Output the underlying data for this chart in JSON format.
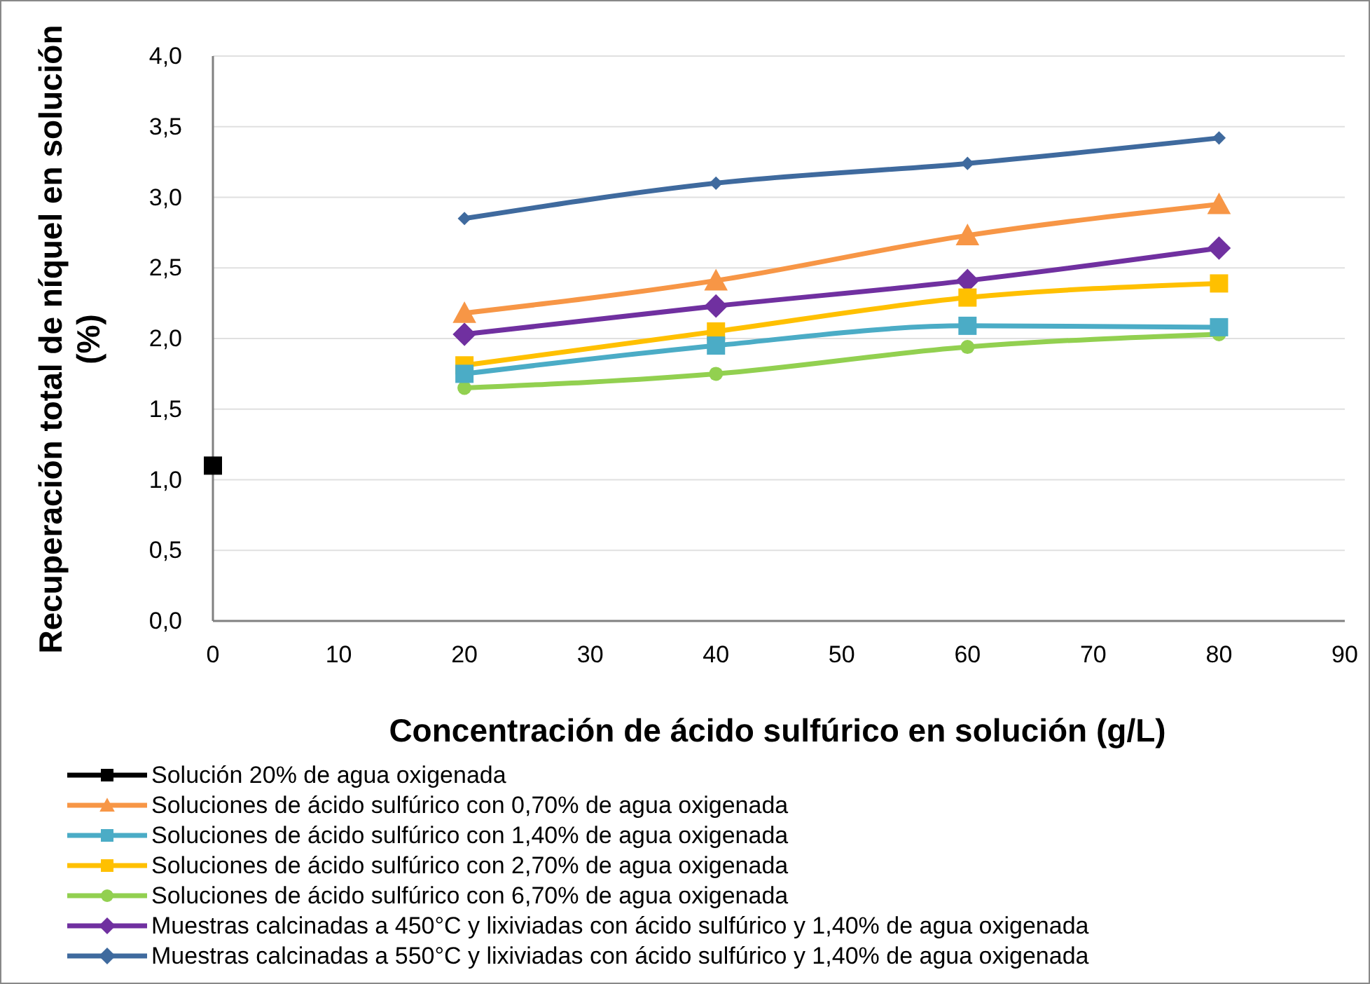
{
  "chart_data": {
    "type": "line",
    "xlabel": "Concentración de ácido sulfúrico en solución (g/L)",
    "ylabel": "Recuperación total de níquel en solución (%)",
    "xlim": [
      0,
      90
    ],
    "xticks": [
      0,
      10,
      20,
      30,
      40,
      50,
      60,
      70,
      80,
      90
    ],
    "ylim": [
      0,
      4
    ],
    "yticks": [
      {
        "value": 0,
        "label": "0,0"
      },
      {
        "value": 0.5,
        "label": "0,5"
      },
      {
        "value": 1,
        "label": "1,0"
      },
      {
        "value": 1.5,
        "label": "1,5"
      },
      {
        "value": 2,
        "label": "2,0"
      },
      {
        "value": 2.5,
        "label": "2,5"
      },
      {
        "value": 3,
        "label": "3,0"
      },
      {
        "value": 3.5,
        "label": "3,5"
      },
      {
        "value": 4,
        "label": "4,0"
      }
    ],
    "grid": "y",
    "legend": "bottom",
    "line_style": "solid",
    "series": [
      {
        "name": "Solución 20% de agua oxigenada",
        "color": "#000000",
        "marker": "square",
        "x": [
          0
        ],
        "values": [
          1.1
        ]
      },
      {
        "name": "Soluciones de ácido sulfúrico con 0,70% de agua oxigenada",
        "color": "#f79646",
        "marker": "triangle",
        "x": [
          20,
          40,
          60,
          80
        ],
        "values": [
          2.18,
          2.41,
          2.73,
          2.95
        ]
      },
      {
        "name": "Soluciones de ácido sulfúrico con 1,40% de agua oxigenada",
        "color": "#4bacc6",
        "marker": "square",
        "x": [
          20,
          40,
          60,
          80
        ],
        "values": [
          1.75,
          1.95,
          2.09,
          2.08
        ]
      },
      {
        "name": "Soluciones de ácido sulfúrico con 2,70% de agua oxigenada",
        "color": "#ffc000",
        "marker": "square",
        "x": [
          20,
          40,
          60,
          80
        ],
        "values": [
          1.81,
          2.05,
          2.29,
          2.39
        ]
      },
      {
        "name": "Soluciones de ácido sulfúrico con 6,70% de agua oxigenada",
        "color": "#92d050",
        "marker": "circle",
        "x": [
          20,
          40,
          60,
          80
        ],
        "values": [
          1.65,
          1.75,
          1.94,
          2.03
        ]
      },
      {
        "name": "Muestras calcinadas a 450°C y lixiviadas con ácido sulfúrico y 1,40% de agua oxigenada",
        "color": "#7030a0",
        "marker": "diamond",
        "x": [
          20,
          40,
          60,
          80
        ],
        "values": [
          2.03,
          2.23,
          2.41,
          2.64
        ]
      },
      {
        "name": "Muestras calcinadas a 550°C y lixiviadas con ácido sulfúrico y 1,40% de agua oxigenada",
        "color": "#3f6a9e",
        "marker": "diamond",
        "x": [
          20,
          40,
          60,
          80
        ],
        "values": [
          2.85,
          3.1,
          3.24,
          3.42
        ]
      }
    ]
  }
}
